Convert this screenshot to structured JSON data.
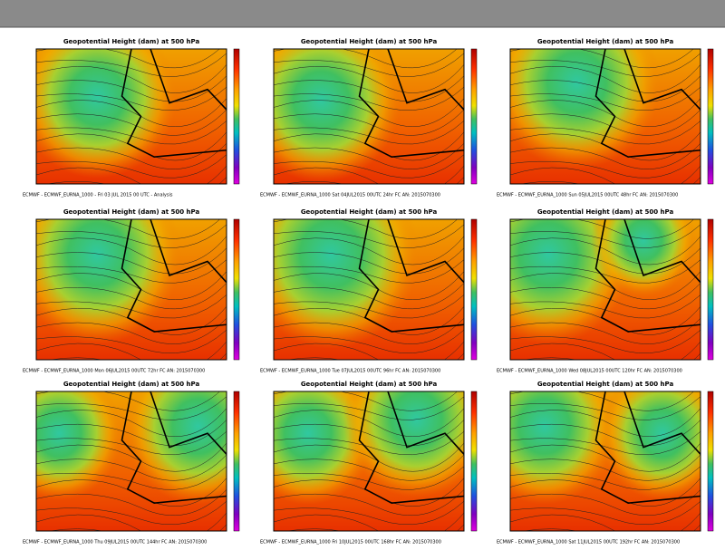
{
  "panels": [
    {
      "title": "Geopotential Height (dam) at 500 hPa",
      "footer": "ECMWF - ECMWF_EURNA_1000 - Fri 03 JUL 2015 00 UTC - Analysis"
    },
    {
      "title": "Geopotential Height (dam) at 500 hPa",
      "footer": "ECMWF - ECMWF_EURNA_1000 Sat 04JUL2015 00UTC 24hr FC AN: 2015070300"
    },
    {
      "title": "Geopotential Height (dam) at 500 hPa",
      "footer": "ECMWF - ECMWF_EURNA_1000 Sun 05JUL2015 00UTC 48hr FC AN: 2015070300"
    },
    {
      "title": "Geopotential Height (dam) at 500 hPa",
      "footer": "ECMWF - ECMWF_EURNA_1000 Mon 06JUL2015 00UTC 72hr FC AN: 2015070300"
    },
    {
      "title": "Geopotential Height (dam) at 500 hPa",
      "footer": "ECMWF - ECMWF_EURNA_1000 Tue 07JUL2015 00UTC 96hr FC AN: 2015070300"
    },
    {
      "title": "Geopotential Height (dam) at 500 hPa",
      "footer": "ECMWF - ECMWF_EURNA_1000 Wed 08JUL2015 00UTC 120hr FC AN: 2015070300"
    },
    {
      "title": "Geopotential Height (dam) at 500 hPa",
      "footer": "ECMWF - ECMWF_EURNA_1000 Thu 09JUL2015 00UTC 144hr FC AN: 2015070300"
    },
    {
      "title": "Geopotential Height (dam) at 500 hPa",
      "footer": "ECMWF - ECMWF_EURNA_1000 Fri 10JUL2015 00UTC 168hr FC AN: 2015070300"
    },
    {
      "title": "Geopotential Height (dam) at 500 hPa",
      "footer": "ECMWF - ECMWF_EURNA_1000 Sat 11JUL2015 00UTC 192hr FC AN: 2015070300"
    }
  ]
}
